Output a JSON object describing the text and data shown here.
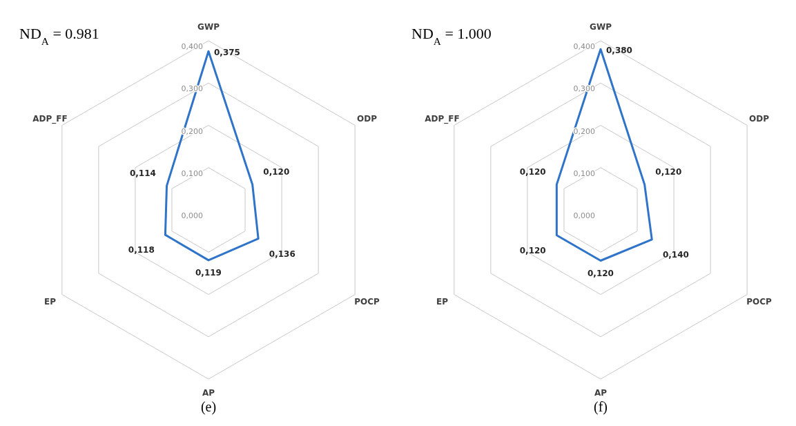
{
  "chart_data": [
    {
      "type": "radar",
      "title": "ND$_{A}$ = 0.981",
      "annotations": [
        "(e)"
      ],
      "categories": [
        "GWP",
        "ODP",
        "POCP",
        "AP",
        "EP",
        "ADP_FF"
      ],
      "series": [
        {
          "color": "#2f74c8",
          "values": [
            0.375,
            0.12,
            0.136,
            0.119,
            0.118,
            0.114
          ],
          "value_labels": [
            "0,375",
            "0,120",
            "0,136",
            "0,119",
            "0,118",
            "0,114"
          ]
        }
      ],
      "ylim": [
        0,
        0.4
      ],
      "yticks": [
        {
          "value": 0,
          "label": "0,000"
        },
        {
          "value": 0.1,
          "label": "0,100"
        },
        {
          "value": 0.2,
          "label": "0,200"
        },
        {
          "value": 0.3,
          "label": "0,300"
        },
        {
          "value": 0.4,
          "label": "0,400"
        }
      ],
      "grid": true,
      "marker": "none",
      "line_style": "solid"
    },
    {
      "type": "radar",
      "title": "ND$_{A}$ = 1.000",
      "annotations": [
        "(f)"
      ],
      "categories": [
        "GWP",
        "ODP",
        "POCP",
        "AP",
        "EP",
        "ADP_FF"
      ],
      "series": [
        {
          "color": "#2f74c8",
          "values": [
            0.38,
            0.12,
            0.14,
            0.12,
            0.12,
            0.12
          ],
          "value_labels": [
            "0,380",
            "0,120",
            "0,140",
            "0,120",
            "0,120",
            "0,120"
          ]
        }
      ],
      "ylim": [
        0,
        0.4
      ],
      "yticks": [
        {
          "value": 0,
          "label": "0,000"
        },
        {
          "value": 0.1,
          "label": "0,100"
        },
        {
          "value": 0.2,
          "label": "0,200"
        },
        {
          "value": 0.3,
          "label": "0,300"
        },
        {
          "value": 0.4,
          "label": "0,400"
        }
      ],
      "grid": true,
      "marker": "none",
      "line_style": "solid"
    }
  ]
}
